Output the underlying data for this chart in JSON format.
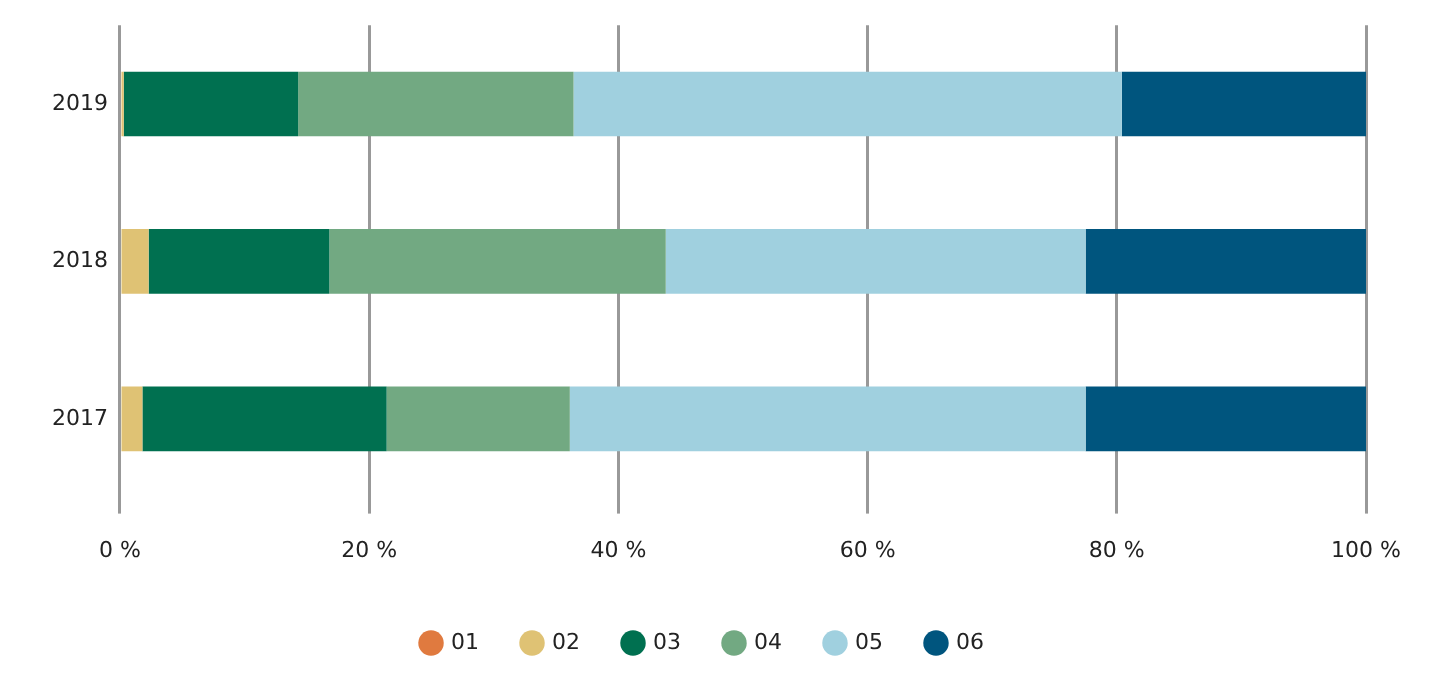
{
  "chart_data": {
    "type": "bar",
    "orientation": "horizontal",
    "stacked": true,
    "categories": [
      "2019",
      "2018",
      "2017"
    ],
    "series": [
      {
        "name": "01",
        "color": "#e07a3f",
        "values": [
          0,
          0,
          0
        ]
      },
      {
        "name": "02",
        "color": "#dfc274",
        "values": [
          0.3,
          2.3,
          1.8
        ]
      },
      {
        "name": "03",
        "color": "#007050",
        "values": [
          14.0,
          14.5,
          19.6
        ]
      },
      {
        "name": "04",
        "color": "#72a982",
        "values": [
          22.1,
          27.0,
          14.7
        ]
      },
      {
        "name": "05",
        "color": "#a0d0df",
        "values": [
          44.0,
          33.7,
          41.4
        ]
      },
      {
        "name": "06",
        "color": "#00557e",
        "values": [
          19.6,
          22.5,
          22.5
        ]
      }
    ],
    "xlim": [
      0,
      100
    ],
    "xticks": [
      {
        "value": 0,
        "label": "0 %"
      },
      {
        "value": 20,
        "label": "20 %"
      },
      {
        "value": 40,
        "label": "40 %"
      },
      {
        "value": 60,
        "label": "60 %"
      },
      {
        "value": 80,
        "label": "80 %"
      },
      {
        "value": 100,
        "label": "100 %"
      }
    ],
    "grid": "x",
    "legend": "bottom"
  }
}
